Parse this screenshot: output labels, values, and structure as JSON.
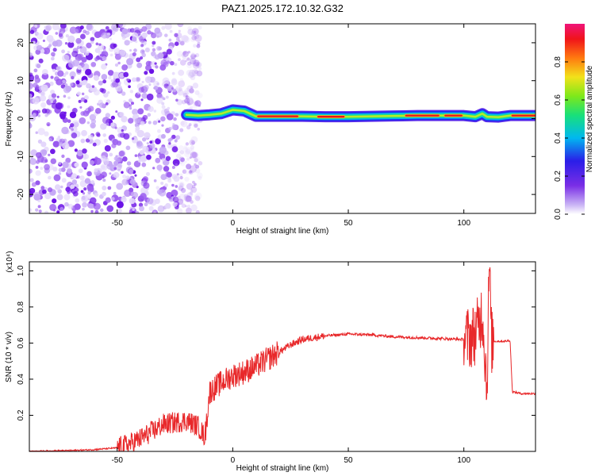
{
  "figure": {
    "title": "PAZ1.2025.172.10.32.G32"
  },
  "colors": {
    "snr_line": "#e8282a",
    "noise_purple": "#7a2ee6",
    "axis": "#000000"
  },
  "chart_data": [
    {
      "type": "heatmap",
      "title": "PAZ1.2025.172.10.32.G32",
      "xlabel": "Height of straight line (km)",
      "ylabel": "Frequency (Hz)",
      "xlim": [
        -88,
        131
      ],
      "ylim": [
        -25,
        25
      ],
      "xticks": [
        -50,
        0,
        50,
        100
      ],
      "yticks": [
        -20,
        -10,
        0,
        10,
        20
      ],
      "colorbar": {
        "label": "Normalized spectral amplitude",
        "range": [
          0,
          1
        ],
        "ticks": [
          0.0,
          0.2,
          0.4,
          0.6,
          0.8
        ],
        "colormap": "rainbow (purple-blue-cyan-green-yellow-red-magenta)"
      },
      "features": {
        "noise_region_x": [
          -88,
          -20
        ],
        "signal_start_x": -20,
        "carrier_frequency_profile": {
          "x": [
            -20,
            -15,
            -10,
            -5,
            0,
            5,
            10,
            20,
            30,
            40,
            50,
            60,
            70,
            80,
            90,
            100,
            105,
            108,
            110,
            115,
            120,
            131
          ],
          "freq": [
            1.0,
            0.8,
            1.0,
            1.3,
            2.3,
            2.0,
            0.6,
            0.6,
            0.6,
            0.5,
            0.5,
            0.6,
            0.7,
            0.8,
            0.8,
            0.8,
            0.5,
            1.3,
            0.5,
            0.4,
            0.8,
            0.8
          ]
        },
        "peak_amplitude_segments_x": [
          [
            11,
            28
          ],
          [
            37,
            48
          ],
          [
            75,
            89
          ],
          [
            92,
            99
          ],
          [
            121,
            131
          ]
        ]
      }
    },
    {
      "type": "line",
      "xlabel": "Height of straight line (km)",
      "ylabel": "SNR (10 * v/v)",
      "y_multiplier": "(x10⁴)",
      "xlim": [
        -88,
        131
      ],
      "ylim": [
        0,
        1.05
      ],
      "xticks": [
        -50,
        0,
        50,
        100
      ],
      "yticks": [
        0.2,
        0.4,
        0.6,
        0.8,
        1.0
      ],
      "series": [
        {
          "color": "#e8282a",
          "x": [
            -88,
            -70,
            -60,
            -50,
            -45,
            -40,
            -35,
            -30,
            -25,
            -20,
            -15,
            -12,
            -10,
            -5,
            0,
            5,
            10,
            15,
            20,
            25,
            30,
            40,
            50,
            60,
            70,
            80,
            90,
            100,
            104,
            106,
            108,
            110,
            111,
            112,
            113,
            115,
            118,
            120,
            121,
            125,
            131
          ],
          "y": [
            0.0,
            0.005,
            0.01,
            0.02,
            0.04,
            0.07,
            0.11,
            0.15,
            0.16,
            0.17,
            0.14,
            0.08,
            0.33,
            0.38,
            0.42,
            0.44,
            0.47,
            0.51,
            0.55,
            0.59,
            0.62,
            0.64,
            0.65,
            0.645,
            0.635,
            0.63,
            0.625,
            0.62,
            0.64,
            0.68,
            0.78,
            0.35,
            1.05,
            0.6,
            0.61,
            0.61,
            0.61,
            0.615,
            0.33,
            0.32,
            0.32
          ]
        }
      ]
    }
  ]
}
